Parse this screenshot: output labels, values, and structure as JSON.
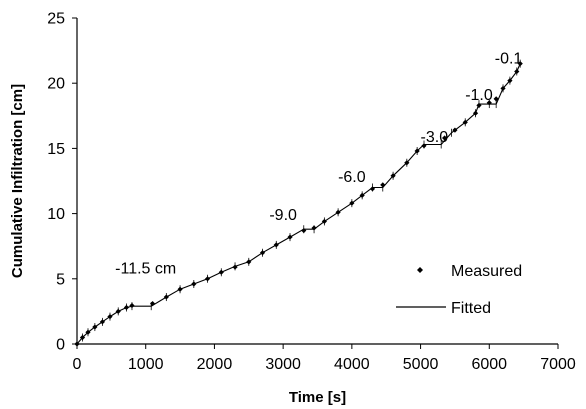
{
  "chart_data": {
    "type": "scatter",
    "xlabel": "Time [s]",
    "ylabel": "Cumulative Infiltration [cm]",
    "xlim": [
      0,
      7000
    ],
    "ylim": [
      0,
      25
    ],
    "x_ticks": [
      0,
      1000,
      2000,
      3000,
      4000,
      5000,
      6000,
      7000
    ],
    "y_ticks": [
      0,
      5,
      10,
      15,
      20,
      25
    ],
    "x_tick_labels": [
      "0",
      "1000",
      "2000",
      "3000",
      "4000",
      "5000",
      "6000",
      "7000"
    ],
    "y_tick_labels": [
      "0",
      "5",
      "10",
      "15",
      "20",
      "25"
    ],
    "grid": false,
    "legend_position": "right",
    "series": [
      {
        "name": "Measured",
        "style": "diamond-markers",
        "color": "#000000",
        "x": [
          0,
          80,
          160,
          260,
          370,
          480,
          600,
          720,
          800,
          1100,
          1300,
          1500,
          1700,
          1900,
          2100,
          2300,
          2500,
          2700,
          2900,
          3100,
          3300,
          3450,
          3600,
          3800,
          4000,
          4150,
          4300,
          4450,
          4600,
          4800,
          4950,
          5050,
          5350,
          5500,
          5650,
          5800,
          5850,
          6000,
          6100,
          6200,
          6300,
          6400,
          6450
        ],
        "y": [
          0.0,
          0.5,
          0.9,
          1.3,
          1.7,
          2.1,
          2.5,
          2.8,
          2.95,
          3.1,
          3.6,
          4.2,
          4.6,
          5.0,
          5.5,
          5.9,
          6.3,
          7.0,
          7.6,
          8.2,
          8.7,
          8.9,
          9.4,
          10.1,
          10.8,
          11.4,
          11.9,
          12.2,
          12.9,
          13.9,
          14.8,
          15.2,
          15.8,
          16.4,
          17.0,
          17.7,
          18.3,
          18.5,
          18.8,
          19.6,
          20.2,
          20.9,
          21.5
        ]
      },
      {
        "name": "Fitted",
        "style": "line",
        "color": "#000000",
        "x": [
          0,
          80,
          160,
          260,
          370,
          480,
          600,
          720,
          800,
          1080,
          1300,
          1500,
          1700,
          1900,
          2100,
          2300,
          2500,
          2700,
          2900,
          3100,
          3300,
          3450,
          3600,
          3800,
          4000,
          4150,
          4300,
          4450,
          4600,
          4800,
          4950,
          5050,
          5300,
          5450,
          5650,
          5800,
          5850,
          6000,
          6100,
          6200,
          6300,
          6400,
          6450
        ],
        "y": [
          0.0,
          0.5,
          0.9,
          1.3,
          1.7,
          2.1,
          2.5,
          2.8,
          2.9,
          2.9,
          3.6,
          4.2,
          4.6,
          5.0,
          5.5,
          5.95,
          6.3,
          7.0,
          7.6,
          8.2,
          8.8,
          8.8,
          9.4,
          10.1,
          10.8,
          11.4,
          12.0,
          12.0,
          12.9,
          13.9,
          14.8,
          15.3,
          15.3,
          16.2,
          17.0,
          17.7,
          18.4,
          18.4,
          18.4,
          19.6,
          20.2,
          20.9,
          21.5
        ]
      }
    ],
    "annotations": [
      {
        "text": "-11.5 cm",
        "x": 1000,
        "y": 5.1
      },
      {
        "text": "-9.0",
        "x": 3000,
        "y": 9.2
      },
      {
        "text": "-6.0",
        "x": 4000,
        "y": 12.1
      },
      {
        "text": "-3.0",
        "x": 5200,
        "y": 15.2
      },
      {
        "text": "-1.0",
        "x": 5850,
        "y": 18.4
      },
      {
        "text": "-0.1",
        "x": 6280,
        "y": 21.2
      }
    ]
  }
}
